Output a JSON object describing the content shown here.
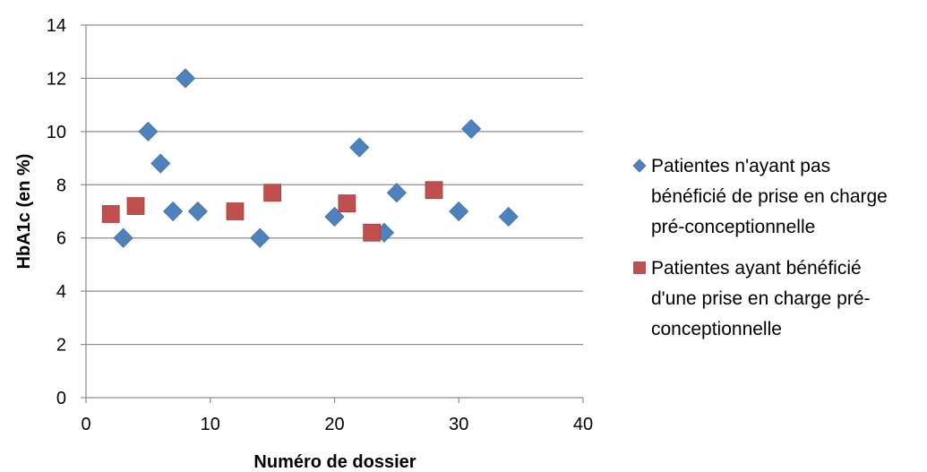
{
  "chart_data": {
    "type": "scatter",
    "xlabel": "Numéro de dossier",
    "ylabel": "HbA1c (en %)",
    "xlim": [
      0,
      40
    ],
    "ylim": [
      0,
      14
    ],
    "x_ticks": [
      0,
      10,
      20,
      30,
      40
    ],
    "y_ticks": [
      0,
      2,
      4,
      6,
      8,
      10,
      12,
      14
    ],
    "grid": "horizontal",
    "legend_position": "right",
    "series": [
      {
        "name_lines": [
          "Patientes n'ayant pas",
          "bénéficié de prise en charge",
          "pré-conceptionnelle"
        ],
        "marker": "diamond",
        "color": "#4F81BD",
        "points": [
          {
            "x": 3,
            "y": 6.0
          },
          {
            "x": 5,
            "y": 10.0
          },
          {
            "x": 6,
            "y": 8.8
          },
          {
            "x": 7,
            "y": 7.0
          },
          {
            "x": 8,
            "y": 12.0
          },
          {
            "x": 9,
            "y": 7.0
          },
          {
            "x": 14,
            "y": 6.0
          },
          {
            "x": 20,
            "y": 6.8
          },
          {
            "x": 22,
            "y": 9.4
          },
          {
            "x": 24,
            "y": 6.2
          },
          {
            "x": 25,
            "y": 7.7
          },
          {
            "x": 30,
            "y": 7.0
          },
          {
            "x": 31,
            "y": 10.1
          },
          {
            "x": 34,
            "y": 6.8
          }
        ]
      },
      {
        "name_lines": [
          "Patientes ayant bénéficié",
          "d'une prise en charge pré-",
          "conceptionnelle"
        ],
        "marker": "square",
        "color": "#C0504D",
        "points": [
          {
            "x": 2,
            "y": 6.9
          },
          {
            "x": 4,
            "y": 7.2
          },
          {
            "x": 12,
            "y": 7.0
          },
          {
            "x": 15,
            "y": 7.7
          },
          {
            "x": 21,
            "y": 7.3
          },
          {
            "x": 23,
            "y": 6.2
          },
          {
            "x": 28,
            "y": 7.8
          }
        ]
      }
    ]
  }
}
